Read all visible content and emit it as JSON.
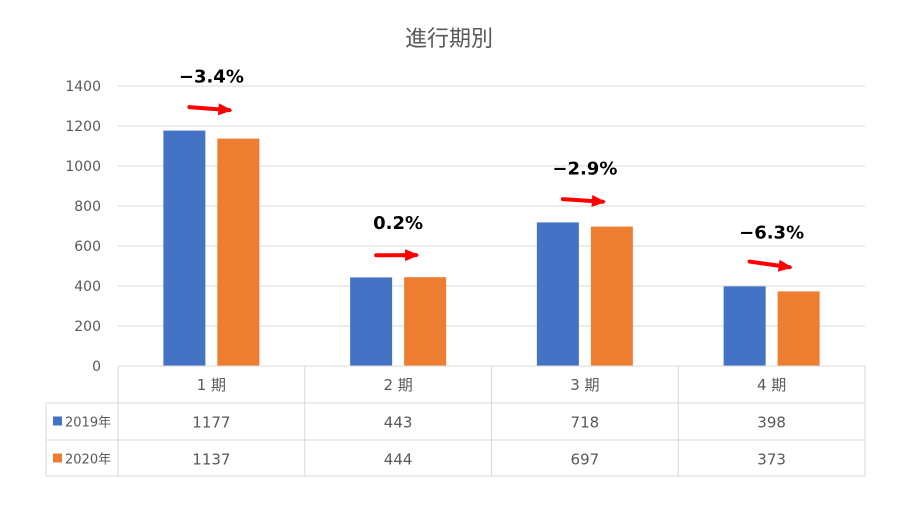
{
  "chart_data": {
    "type": "bar",
    "title": "進行期別",
    "categories": [
      "1 期",
      "2 期",
      "3 期",
      "4 期"
    ],
    "series": [
      {
        "name": "2019年",
        "color": "#4472C4",
        "values": [
          1177,
          443,
          718,
          398
        ]
      },
      {
        "name": "2020年",
        "color": "#ED7D31",
        "values": [
          1137,
          444,
          697,
          373
        ]
      }
    ],
    "ylim": [
      0,
      1400
    ],
    "yticks": [
      0,
      200,
      400,
      600,
      800,
      1000,
      1200,
      1400
    ],
    "grid": true,
    "legend": "data-table-left",
    "annotations": [
      {
        "category": "1 期",
        "label": "−3.4%"
      },
      {
        "category": "2 期",
        "label": "0.2%"
      },
      {
        "category": "3 期",
        "label": "−2.9%"
      },
      {
        "category": "4 期",
        "label": "−6.3%"
      }
    ],
    "arrow_color": "#FF0000"
  }
}
